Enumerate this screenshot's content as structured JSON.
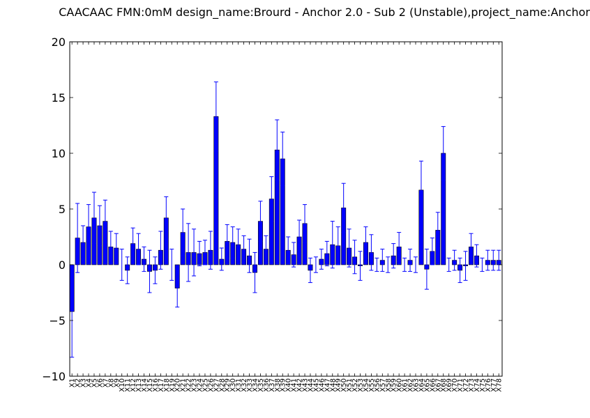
{
  "chart_data": {
    "type": "bar",
    "title": "CAACAAC  FMN:0mM  design_name:Brourd - Anchor 2.0 - Sub 2 (Unstable),project_name:Anchor",
    "xlabel": "",
    "ylabel": "",
    "ylim": [
      -10,
      20
    ],
    "yticks": [
      -10,
      -5,
      0,
      5,
      10,
      15,
      20
    ],
    "grid": false,
    "bar_color": "#0000ff",
    "errorbar_color": "#0000ff",
    "categories": [
      "X1",
      "X2",
      "X3",
      "X4",
      "X5",
      "X6",
      "X7",
      "X8",
      "X9",
      "X10",
      "X11",
      "X12",
      "X13",
      "X14",
      "X15",
      "X16",
      "X17",
      "X18",
      "X19",
      "X20",
      "X21",
      "X22",
      "X23",
      "X24",
      "X25",
      "X26",
      "X27",
      "X28",
      "X29",
      "X30",
      "X31",
      "X32",
      "X33",
      "X34",
      "X35",
      "X36",
      "X37",
      "X38",
      "X39",
      "X40",
      "X41",
      "X42",
      "X43",
      "X44",
      "X45",
      "X46",
      "X47",
      "X48",
      "X49",
      "X50",
      "X51",
      "X52",
      "X53",
      "X54",
      "X55",
      "X56",
      "X57",
      "X58",
      "X59",
      "X60",
      "X61",
      "X62",
      "X63",
      "X64",
      "X65",
      "X66",
      "X67",
      "X68",
      "X69",
      "X70",
      "X71",
      "X72",
      "X73",
      "X74",
      "X75",
      "X76",
      "X77",
      "X78"
    ],
    "values": [
      -4.2,
      2.4,
      2.0,
      3.4,
      4.2,
      3.5,
      3.9,
      1.6,
      1.5,
      0.0,
      -0.5,
      1.9,
      1.4,
      0.5,
      -0.6,
      -0.5,
      1.3,
      4.2,
      0.0,
      -2.1,
      2.9,
      1.1,
      1.1,
      1.0,
      1.1,
      1.3,
      13.3,
      0.5,
      2.1,
      2.0,
      1.8,
      1.4,
      0.8,
      -0.7,
      3.9,
      1.4,
      5.9,
      10.3,
      9.5,
      1.3,
      0.9,
      2.5,
      3.7,
      -0.5,
      0.0,
      0.5,
      1.0,
      1.8,
      1.7,
      5.1,
      1.5,
      0.7,
      -0.1,
      2.0,
      1.1,
      0.0,
      0.4,
      0.0,
      0.8,
      1.6,
      0.0,
      0.4,
      0.0,
      6.7,
      -0.4,
      1.2,
      3.1,
      10.0,
      0.0,
      0.4,
      -0.5,
      -0.1,
      1.6,
      0.8,
      0.0,
      0.4,
      0.4,
      0.4
    ],
    "errors": [
      4.1,
      3.1,
      1.5,
      2.0,
      2.3,
      1.8,
      1.9,
      1.4,
      1.3,
      1.4,
      1.2,
      1.4,
      1.4,
      1.1,
      1.9,
      1.2,
      1.7,
      1.9,
      1.4,
      1.7,
      2.1,
      2.6,
      2.1,
      1.1,
      1.1,
      1.7,
      3.1,
      1.0,
      1.5,
      1.4,
      1.4,
      1.2,
      1.5,
      1.8,
      1.8,
      1.2,
      2.0,
      2.7,
      2.4,
      1.2,
      1.1,
      1.5,
      1.7,
      1.1,
      0.7,
      0.9,
      1.1,
      2.1,
      1.7,
      2.2,
      1.7,
      1.5,
      1.3,
      1.4,
      1.6,
      0.6,
      1.0,
      0.7,
      1.1,
      1.3,
      0.6,
      1.0,
      0.7,
      2.6,
      1.8,
      1.2,
      1.6,
      2.4,
      0.6,
      0.9,
      1.1,
      1.3,
      1.2,
      1.0,
      0.6,
      0.9,
      0.9,
      0.9
    ]
  }
}
